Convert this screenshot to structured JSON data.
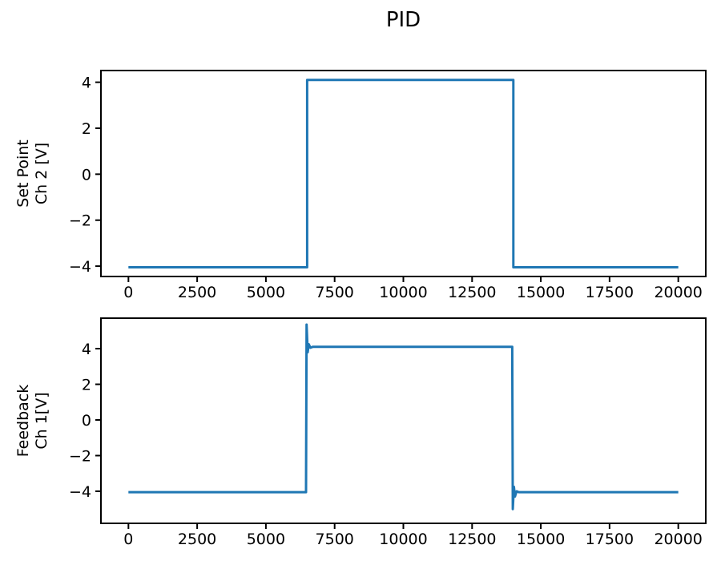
{
  "figure": {
    "title": "PID",
    "background": "#ffffff",
    "frame_color": "#000000",
    "line_color": "#1f77b4"
  },
  "chart_data": [
    {
      "type": "line",
      "subplot": "top",
      "ylabel_lines": [
        "Set Point",
        "Ch 2 [V]"
      ],
      "xlabel": "",
      "grid": false,
      "legend": null,
      "xlim": [
        -1000,
        21000
      ],
      "ylim": [
        -4.45,
        4.51
      ],
      "xticks": [
        0,
        2500,
        5000,
        7500,
        10000,
        12500,
        15000,
        17500,
        20000
      ],
      "xtick_labels": [
        "0",
        "2500",
        "5000",
        "7500",
        "10000",
        "12500",
        "15000",
        "17500",
        "20000"
      ],
      "yticks": [
        -4,
        -2,
        0,
        2,
        4
      ],
      "ytick_labels": [
        "−4",
        "−2",
        "0",
        "2",
        "4"
      ],
      "series": [
        {
          "color": "#1f77b4",
          "x": [
            0,
            6500,
            6500,
            14000,
            14000,
            20000
          ],
          "y": [
            -4.05,
            -4.05,
            4.1,
            4.1,
            -4.05,
            -4.05
          ]
        }
      ]
    },
    {
      "type": "line",
      "subplot": "bottom",
      "ylabel_lines": [
        "Feedback",
        "Ch 1[V]"
      ],
      "xlabel": "",
      "grid": false,
      "legend": null,
      "xlim": [
        -1000,
        21000
      ],
      "ylim": [
        -5.8,
        5.71
      ],
      "xticks": [
        0,
        2500,
        5000,
        7500,
        10000,
        12500,
        15000,
        17500,
        20000
      ],
      "xtick_labels": [
        "0",
        "2500",
        "5000",
        "7500",
        "10000",
        "12500",
        "15000",
        "17500",
        "20000"
      ],
      "yticks": [
        -4,
        -2,
        0,
        2,
        4
      ],
      "ytick_labels": [
        "−4",
        "−2",
        "0",
        "2",
        "4"
      ],
      "series": [
        {
          "color": "#1f77b4",
          "x": [
            0,
            6460,
            6480,
            6520,
            6560,
            6620,
            6700,
            13960,
            13980,
            14020,
            14060,
            14120,
            14200,
            20000
          ],
          "y": [
            -4.05,
            -4.05,
            5.35,
            3.8,
            4.25,
            4.05,
            4.1,
            4.1,
            -5.0,
            -3.75,
            -4.3,
            -4.0,
            -4.05,
            -4.05
          ]
        }
      ]
    }
  ]
}
